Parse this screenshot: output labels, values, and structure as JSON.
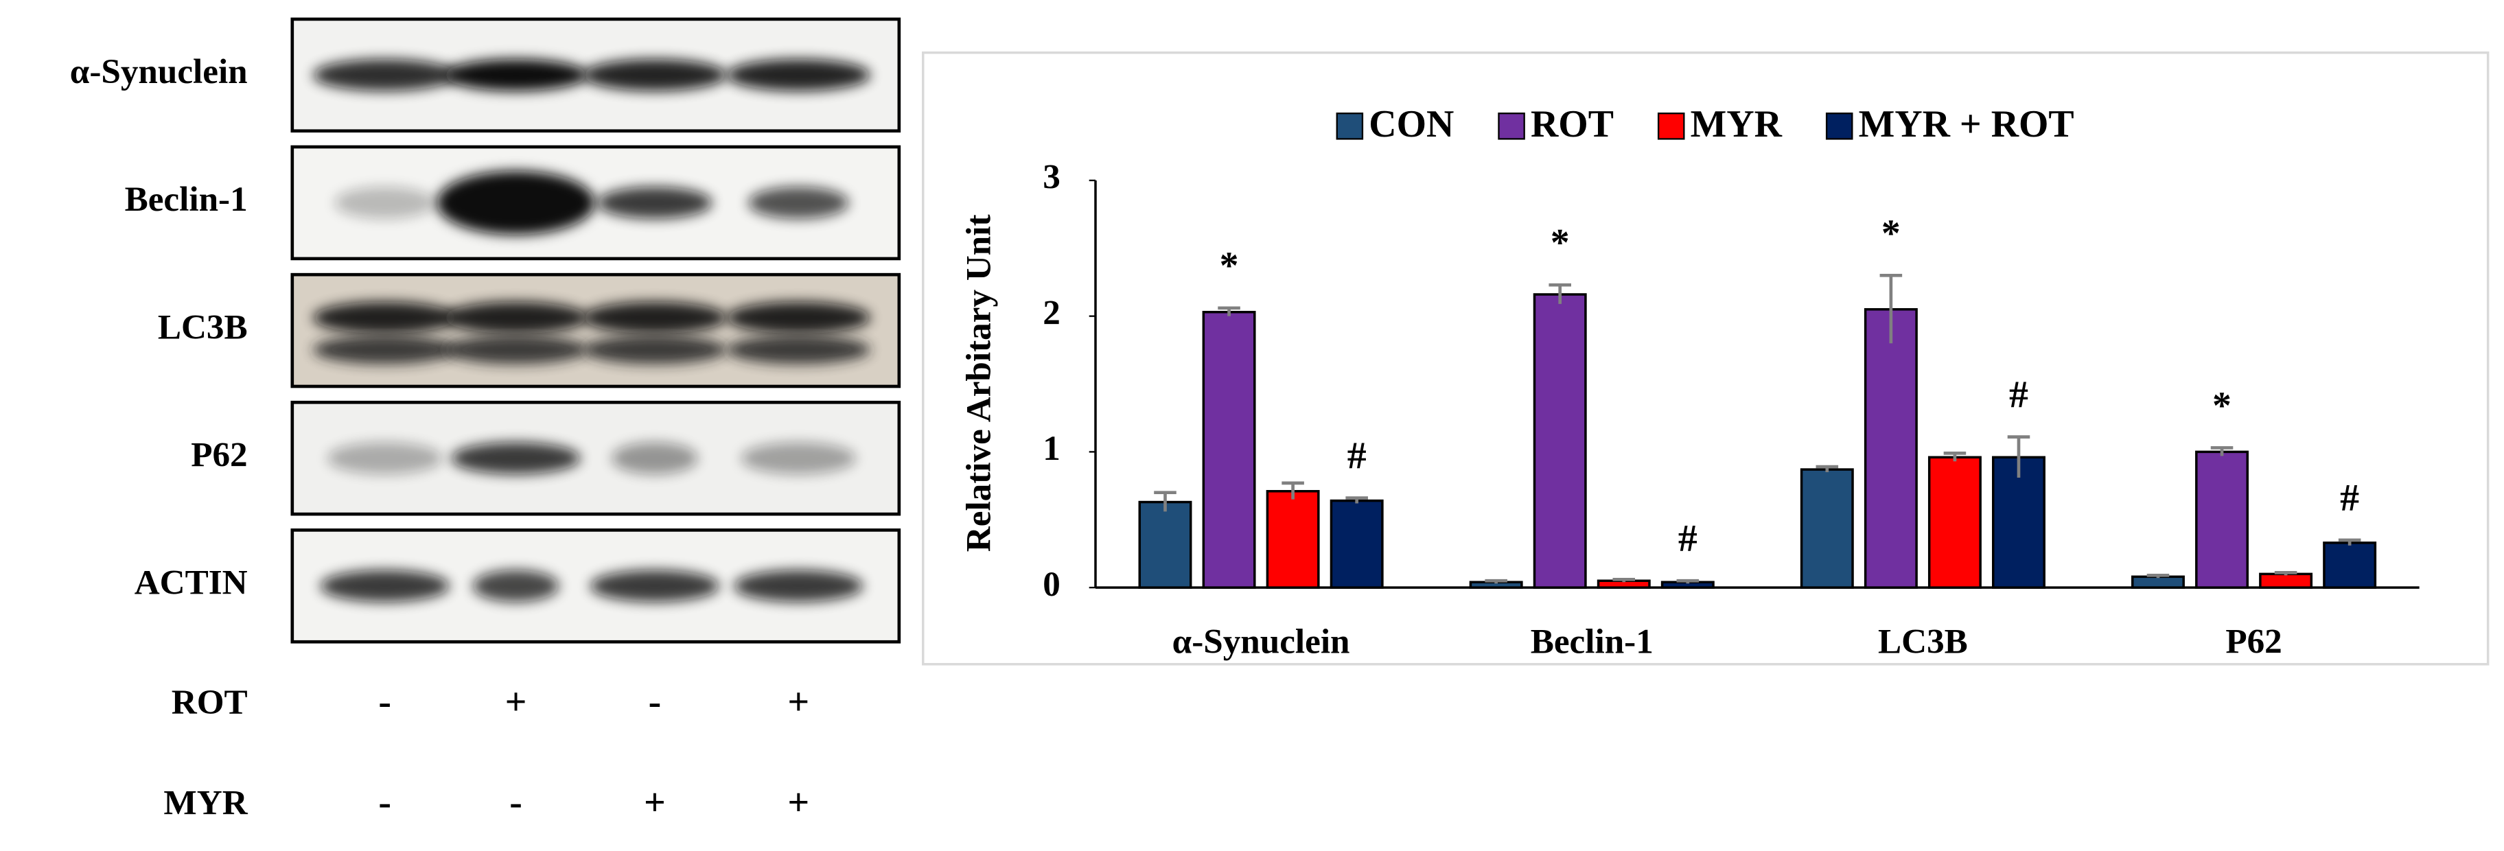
{
  "blot": {
    "rows": [
      "α-Synuclein",
      "Beclin-1",
      "LC3B",
      "P62",
      "ACTIN"
    ],
    "treatments": [
      {
        "label": "ROT",
        "signs": [
          "-",
          "+",
          "-",
          "+"
        ]
      },
      {
        "label": "MYR",
        "signs": [
          "-",
          "-",
          "+",
          "+"
        ]
      }
    ]
  },
  "chart_data": {
    "type": "bar",
    "ylabel": "Relative Arbitary Unit",
    "categories": [
      "α-Synuclein",
      "Beclin-1",
      "LC3B",
      "P62"
    ],
    "series": [
      {
        "name": "CON",
        "color": "#1f4e79",
        "values": [
          0.63,
          0.04,
          0.87,
          0.08
        ],
        "errors": [
          0.07,
          0.01,
          0.02,
          0.01
        ]
      },
      {
        "name": "ROT",
        "color": "#7030a0",
        "values": [
          2.03,
          2.16,
          2.05,
          1.0
        ],
        "errors": [
          0.03,
          0.07,
          0.25,
          0.03
        ],
        "significance": [
          "*",
          "*",
          "*",
          "*"
        ]
      },
      {
        "name": "MYR",
        "color": "#ff0000",
        "values": [
          0.71,
          0.05,
          0.96,
          0.1
        ],
        "errors": [
          0.06,
          0.01,
          0.03,
          0.01
        ]
      },
      {
        "name": "MYR + ROT",
        "color": "#002060",
        "values": [
          0.64,
          0.04,
          0.96,
          0.33
        ],
        "errors": [
          0.02,
          0.01,
          0.15,
          0.02
        ],
        "significance": [
          "#",
          "#",
          "#",
          "#"
        ]
      }
    ],
    "ylim": [
      0,
      3
    ],
    "yticks": [
      0,
      1,
      2,
      3
    ],
    "legend": "top"
  }
}
